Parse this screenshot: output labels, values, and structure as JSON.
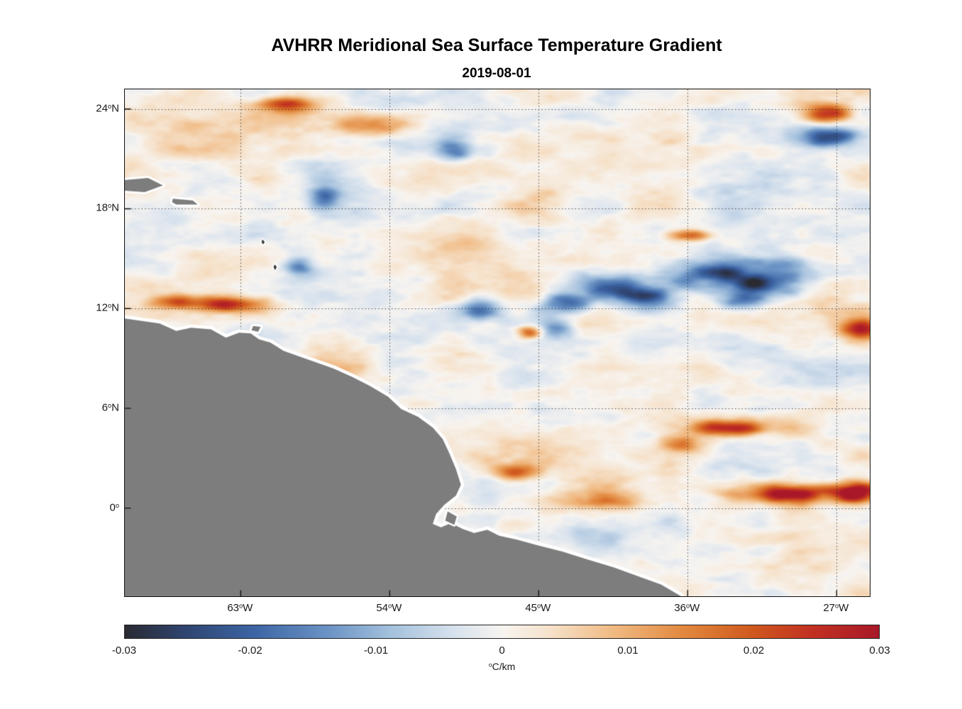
{
  "figure": {
    "title": "AVHRR Meridional Sea Surface Temperature Gradient",
    "subtitle": "2019-08-01"
  },
  "axes": {
    "x_ticks": [
      "63°W",
      "54°W",
      "45°W",
      "36°W",
      "27°W"
    ],
    "y_ticks": [
      "24°N",
      "18°N",
      "12°N",
      "6°N",
      "0°"
    ]
  },
  "colorbar": {
    "tick_labels": [
      "-0.03",
      "-0.02",
      "-0.01",
      "0",
      "0.01",
      "0.02",
      "0.03"
    ],
    "label": "°C/km",
    "stops": [
      {
        "t": 0.0,
        "color": "#2a2a32"
      },
      {
        "t": 0.08,
        "color": "#2f4470"
      },
      {
        "t": 0.17,
        "color": "#3c64a4"
      },
      {
        "t": 0.27,
        "color": "#6b93c4"
      },
      {
        "t": 0.35,
        "color": "#a2bfdc"
      },
      {
        "t": 0.44,
        "color": "#d9e3ee"
      },
      {
        "t": 0.5,
        "color": "#f7f4f0"
      },
      {
        "t": 0.56,
        "color": "#f6e3cd"
      },
      {
        "t": 0.65,
        "color": "#f0b981"
      },
      {
        "t": 0.74,
        "color": "#e2893f"
      },
      {
        "t": 0.83,
        "color": "#d05a1e"
      },
      {
        "t": 0.91,
        "color": "#c23222"
      },
      {
        "t": 1.0,
        "color": "#a81828"
      }
    ]
  },
  "colors": {
    "land": "#7d7d7d",
    "land_dark": "#3a3a3a",
    "coast_fringe": "#ffffff",
    "grid": "#262626",
    "axis": "#111111",
    "text": "#1a1a1a"
  },
  "chart_data": {
    "type": "heatmap",
    "title": "AVHRR Meridional Sea Surface Temperature Gradient",
    "date": "2019-08-01",
    "units": "°C/km",
    "value_range": [
      -0.03,
      0.03
    ],
    "colorbar_ticks": [
      -0.03,
      -0.02,
      -0.01,
      0,
      0.01,
      0.02,
      0.03
    ],
    "x": {
      "tick_labels": [
        "63°W",
        "54°W",
        "45°W",
        "36°W",
        "27°W"
      ],
      "tick_lons": [
        -63,
        -54,
        -45,
        -36,
        -27
      ],
      "range": [
        -70,
        -25
      ]
    },
    "y": {
      "tick_labels": [
        "24°N",
        "18°N",
        "12°N",
        "6°N",
        "0°"
      ],
      "tick_lats": [
        24,
        18,
        12,
        6,
        0
      ],
      "range": [
        -5.3,
        25.18
      ]
    },
    "land_polygons": [
      {
        "name": "mainland-coast",
        "fringe": 9,
        "points": [
          [
            -71.3,
            11.4
          ],
          [
            -70.0,
            11.4
          ],
          [
            -67.9,
            11.1
          ],
          [
            -66.9,
            10.65
          ],
          [
            -66.0,
            10.85
          ],
          [
            -64.8,
            10.75
          ],
          [
            -63.9,
            10.25
          ],
          [
            -63.1,
            10.55
          ],
          [
            -62.4,
            10.5
          ],
          [
            -61.9,
            10.15
          ],
          [
            -61.2,
            9.95
          ],
          [
            -60.4,
            9.45
          ],
          [
            -59.4,
            9.1
          ],
          [
            -58.4,
            8.75
          ],
          [
            -57.4,
            8.4
          ],
          [
            -56.3,
            7.9
          ],
          [
            -55.2,
            7.35
          ],
          [
            -54.1,
            6.7
          ],
          [
            -53.3,
            5.95
          ],
          [
            -52.3,
            5.5
          ],
          [
            -51.4,
            4.85
          ],
          [
            -50.8,
            4.15
          ],
          [
            -50.4,
            3.3
          ],
          [
            -50.0,
            2.35
          ],
          [
            -49.7,
            1.4
          ],
          [
            -50.0,
            0.75
          ],
          [
            -50.7,
            0.2
          ],
          [
            -51.2,
            -0.35
          ],
          [
            -51.4,
            -0.95
          ],
          [
            -50.9,
            -1.15
          ],
          [
            -50.3,
            -0.9
          ],
          [
            -49.6,
            -1.25
          ],
          [
            -48.9,
            -1.5
          ],
          [
            -48.1,
            -1.3
          ],
          [
            -47.4,
            -1.65
          ],
          [
            -46.3,
            -1.9
          ],
          [
            -45.0,
            -2.25
          ],
          [
            -43.6,
            -2.6
          ],
          [
            -42.0,
            -3.1
          ],
          [
            -40.5,
            -3.55
          ],
          [
            -39.0,
            -4.1
          ],
          [
            -37.6,
            -4.6
          ],
          [
            -36.4,
            -5.3
          ],
          [
            -36.1,
            -6.4
          ],
          [
            -71.3,
            -6.4
          ]
        ]
      },
      {
        "name": "island-large-west",
        "fringe": 6,
        "points": [
          [
            -71.3,
            19.55
          ],
          [
            -69.8,
            19.75
          ],
          [
            -68.6,
            19.85
          ],
          [
            -67.7,
            19.4
          ],
          [
            -68.8,
            19.0
          ],
          [
            -70.2,
            19.1
          ],
          [
            -71.3,
            19.2
          ]
        ]
      },
      {
        "name": "island-small-west",
        "fringe": 6,
        "points": [
          [
            -67.1,
            18.6
          ],
          [
            -65.9,
            18.5
          ],
          [
            -65.6,
            18.25
          ],
          [
            -66.9,
            18.25
          ],
          [
            -67.15,
            18.4
          ]
        ]
      },
      {
        "name": "island-near-coast",
        "fringe": 6,
        "points": [
          [
            -62.25,
            10.95
          ],
          [
            -61.8,
            10.9
          ],
          [
            -61.95,
            10.6
          ],
          [
            -62.35,
            10.7
          ]
        ]
      },
      {
        "name": "islet-a",
        "fringe": 4,
        "dark": true,
        "points": [
          [
            -61.68,
            16.15
          ],
          [
            -61.55,
            16.0
          ],
          [
            -61.65,
            15.85
          ],
          [
            -61.75,
            16.0
          ]
        ]
      },
      {
        "name": "islet-b",
        "fringe": 4,
        "dark": true,
        "points": [
          [
            -60.95,
            14.65
          ],
          [
            -60.82,
            14.5
          ],
          [
            -60.92,
            14.3
          ],
          [
            -61.02,
            14.5
          ]
        ]
      },
      {
        "name": "island-river-mouth",
        "fringe": 5,
        "points": [
          [
            -50.5,
            -0.2
          ],
          [
            -49.95,
            -0.5
          ],
          [
            -50.1,
            -1.0
          ],
          [
            -50.65,
            -0.75
          ]
        ]
      }
    ],
    "notable_features": [
      {
        "desc": "strong positive patch",
        "lon": -27.6,
        "lat": 23.7,
        "peak": 0.03,
        "sx_deg": 1.0,
        "sy_deg": 0.45
      },
      {
        "desc": "strong negative patch",
        "lon": -27.8,
        "lat": 22.4,
        "peak": -0.024,
        "sx_deg": 1.3,
        "sy_deg": 0.55
      },
      {
        "desc": "positive streak",
        "lon": -63.5,
        "lat": 12.25,
        "peak": 0.028,
        "sx_deg": 1.6,
        "sy_deg": 0.35
      },
      {
        "desc": "positive streak",
        "lon": -66.6,
        "lat": 12.4,
        "peak": 0.013,
        "sx_deg": 1.3,
        "sy_deg": 0.3
      },
      {
        "desc": "positive streak",
        "lon": -60.3,
        "lat": 24.3,
        "peak": 0.017,
        "sx_deg": 1.4,
        "sy_deg": 0.35
      },
      {
        "desc": "negative patch",
        "lon": -34.8,
        "lat": 13.9,
        "peak": -0.026,
        "sx_deg": 2.2,
        "sy_deg": 0.8
      },
      {
        "desc": "negative patch",
        "lon": -31.2,
        "lat": 13.4,
        "peak": -0.022,
        "sx_deg": 1.6,
        "sy_deg": 0.7
      },
      {
        "desc": "negative patch",
        "lon": -33.0,
        "lat": 12.6,
        "peak": -0.018,
        "sx_deg": 1.1,
        "sy_deg": 0.5
      },
      {
        "desc": "negative patch",
        "lon": -40.8,
        "lat": 13.4,
        "peak": -0.022,
        "sx_deg": 1.4,
        "sy_deg": 0.6
      },
      {
        "desc": "negative patch",
        "lon": -43.5,
        "lat": 12.4,
        "peak": -0.019,
        "sx_deg": 1.2,
        "sy_deg": 0.5
      },
      {
        "desc": "negative patch",
        "lon": -38.5,
        "lat": 12.6,
        "peak": -0.02,
        "sx_deg": 1.3,
        "sy_deg": 0.6
      },
      {
        "desc": "negative patch",
        "lon": -48.5,
        "lat": 12.1,
        "peak": -0.017,
        "sx_deg": 1.0,
        "sy_deg": 0.5
      },
      {
        "desc": "negative patch",
        "lon": -30.0,
        "lat": 14.3,
        "peak": -0.018,
        "sx_deg": 1.2,
        "sy_deg": 0.7
      },
      {
        "desc": "positive spot",
        "lon": -45.5,
        "lat": 10.6,
        "peak": 0.024,
        "sx_deg": 0.55,
        "sy_deg": 0.3
      },
      {
        "desc": "negative patch",
        "lon": -43.9,
        "lat": 10.9,
        "peak": -0.015,
        "sx_deg": 0.9,
        "sy_deg": 0.45
      },
      {
        "desc": "positive arc",
        "lon": -33.6,
        "lat": 4.9,
        "peak": 0.03,
        "sx_deg": 1.8,
        "sy_deg": 0.45
      },
      {
        "desc": "positive arc tail",
        "lon": -36.0,
        "lat": 3.9,
        "peak": 0.015,
        "sx_deg": 1.2,
        "sy_deg": 0.4
      },
      {
        "desc": "positive band",
        "lon": -29.5,
        "lat": 0.9,
        "peak": 0.028,
        "sx_deg": 2.8,
        "sy_deg": 0.45
      },
      {
        "desc": "positive band",
        "lon": -25.6,
        "lat": 0.95,
        "peak": 0.026,
        "sx_deg": 1.0,
        "sy_deg": 0.5
      },
      {
        "desc": "positive band",
        "lon": -41.5,
        "lat": 0.4,
        "peak": 0.017,
        "sx_deg": 2.0,
        "sy_deg": 0.5
      },
      {
        "desc": "positive streak",
        "lon": -36.0,
        "lat": 16.5,
        "peak": 0.019,
        "sx_deg": 1.1,
        "sy_deg": 0.35
      },
      {
        "desc": "negative patch",
        "lon": -58.0,
        "lat": 18.7,
        "peak": -0.016,
        "sx_deg": 0.7,
        "sy_deg": 0.6
      },
      {
        "desc": "negative patch",
        "lon": -59.5,
        "lat": 14.6,
        "peak": -0.013,
        "sx_deg": 0.7,
        "sy_deg": 0.5
      },
      {
        "desc": "negative patch",
        "lon": -50.2,
        "lat": 21.6,
        "peak": -0.012,
        "sx_deg": 0.8,
        "sy_deg": 0.55
      },
      {
        "desc": "positive patch",
        "lon": -25.7,
        "lat": 10.8,
        "peak": 0.023,
        "sx_deg": 0.9,
        "sy_deg": 0.45
      },
      {
        "desc": "positive streak",
        "lon": -46.2,
        "lat": 2.2,
        "peak": 0.016,
        "sx_deg": 1.3,
        "sy_deg": 0.4
      },
      {
        "desc": "faint positive patch",
        "lon": -55.0,
        "lat": 23.0,
        "peak": 0.012,
        "sx_deg": 1.5,
        "sy_deg": 0.5
      }
    ]
  }
}
